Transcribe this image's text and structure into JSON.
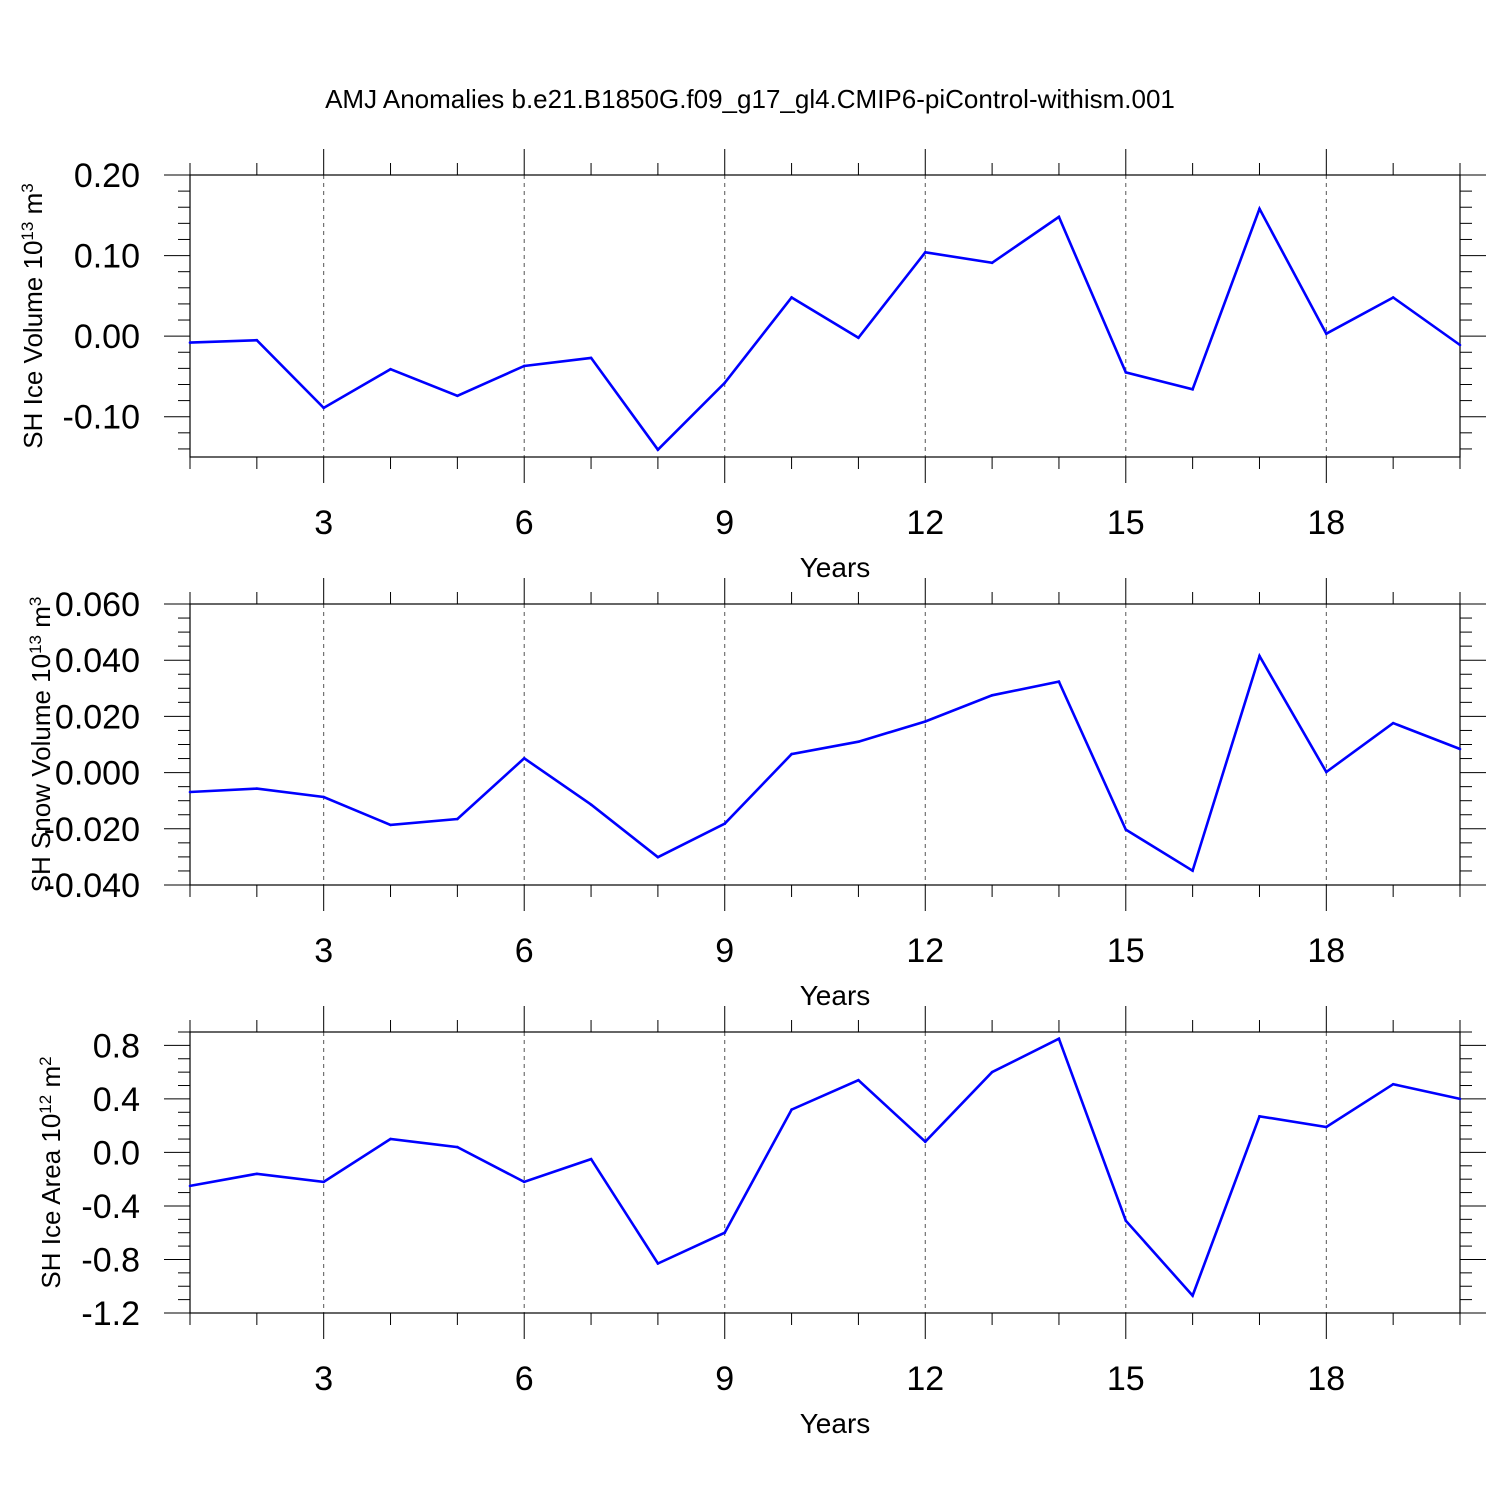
{
  "title": "AMJ Anomalies b.e21.B1850G.f09_g17_gl4.CMIP6-piControl-withism.001",
  "series_color": "#0000ff",
  "chart_data": [
    {
      "type": "line",
      "ylabel": "SH Ice Volume 10",
      "ylabel_exp": "13",
      "ylabel_unit": " m",
      "ylabel_unit_exp": "3",
      "xlabel": "Years",
      "xlim": [
        1,
        20
      ],
      "ylim": [
        -0.15,
        0.2
      ],
      "xticks": [
        3,
        6,
        9,
        12,
        15,
        18
      ],
      "xtick_labels": [
        "3",
        "6",
        "9",
        "12",
        "15",
        "18"
      ],
      "yticks": [
        -0.1,
        0.0,
        0.1,
        0.2
      ],
      "ytick_labels": [
        "-0.10",
        "0.00",
        "0.10",
        "0.20"
      ],
      "yminor_step": 0.02,
      "x": [
        1,
        2,
        3,
        4,
        5,
        6,
        7,
        8,
        9,
        10,
        11,
        12,
        13,
        14,
        15,
        16,
        17,
        18,
        19,
        20
      ],
      "values": [
        -0.008,
        -0.005,
        -0.089,
        -0.041,
        -0.074,
        -0.037,
        -0.027,
        -0.141,
        -0.058,
        0.048,
        -0.002,
        0.104,
        0.091,
        0.148,
        -0.045,
        -0.066,
        0.158,
        0.003,
        0.048,
        -0.011
      ]
    },
    {
      "type": "line",
      "ylabel": "SH Snow Volume 10",
      "ylabel_exp": "13",
      "ylabel_unit": " m",
      "ylabel_unit_exp": "3",
      "xlabel": "Years",
      "xlim": [
        1,
        20
      ],
      "ylim": [
        -0.04,
        0.06
      ],
      "xticks": [
        3,
        6,
        9,
        12,
        15,
        18
      ],
      "xtick_labels": [
        "3",
        "6",
        "9",
        "12",
        "15",
        "18"
      ],
      "yticks": [
        -0.04,
        -0.02,
        0.0,
        0.02,
        0.04,
        0.06
      ],
      "ytick_labels": [
        "-0.040",
        "-0.020",
        "0.000",
        "0.020",
        "0.040",
        "0.060"
      ],
      "yminor_step": 0.005,
      "x": [
        1,
        2,
        3,
        4,
        5,
        6,
        7,
        8,
        9,
        10,
        11,
        12,
        13,
        14,
        15,
        16,
        17,
        18,
        19,
        20
      ],
      "values": [
        -0.0069,
        -0.0057,
        -0.0087,
        -0.0186,
        -0.0165,
        0.0051,
        -0.0114,
        -0.0301,
        -0.0182,
        0.0066,
        0.011,
        0.0182,
        0.0275,
        0.0324,
        -0.0203,
        -0.0349,
        0.0415,
        0.0002,
        0.0176,
        0.0084
      ]
    },
    {
      "type": "line",
      "ylabel": "SH Ice Area 10",
      "ylabel_exp": "12",
      "ylabel_unit": " m",
      "ylabel_unit_exp": "2",
      "xlabel": "Years",
      "xlim": [
        1,
        20
      ],
      "ylim": [
        -1.2,
        0.9
      ],
      "xticks": [
        3,
        6,
        9,
        12,
        15,
        18
      ],
      "xtick_labels": [
        "3",
        "6",
        "9",
        "12",
        "15",
        "18"
      ],
      "yticks": [
        -1.2,
        -0.8,
        -0.4,
        0.0,
        0.4,
        0.8
      ],
      "ytick_labels": [
        "-1.2",
        "-0.8",
        "-0.4",
        "0.0",
        "0.4",
        "0.8"
      ],
      "yminor_step": 0.1,
      "x": [
        1,
        2,
        3,
        4,
        5,
        6,
        7,
        8,
        9,
        10,
        11,
        12,
        13,
        14,
        15,
        16,
        17,
        18,
        19,
        20
      ],
      "values": [
        -0.25,
        -0.16,
        -0.22,
        0.1,
        0.04,
        -0.22,
        -0.05,
        -0.83,
        -0.6,
        0.32,
        0.54,
        0.08,
        0.6,
        0.85,
        -0.51,
        -1.07,
        0.27,
        0.19,
        0.51,
        0.4
      ]
    }
  ]
}
